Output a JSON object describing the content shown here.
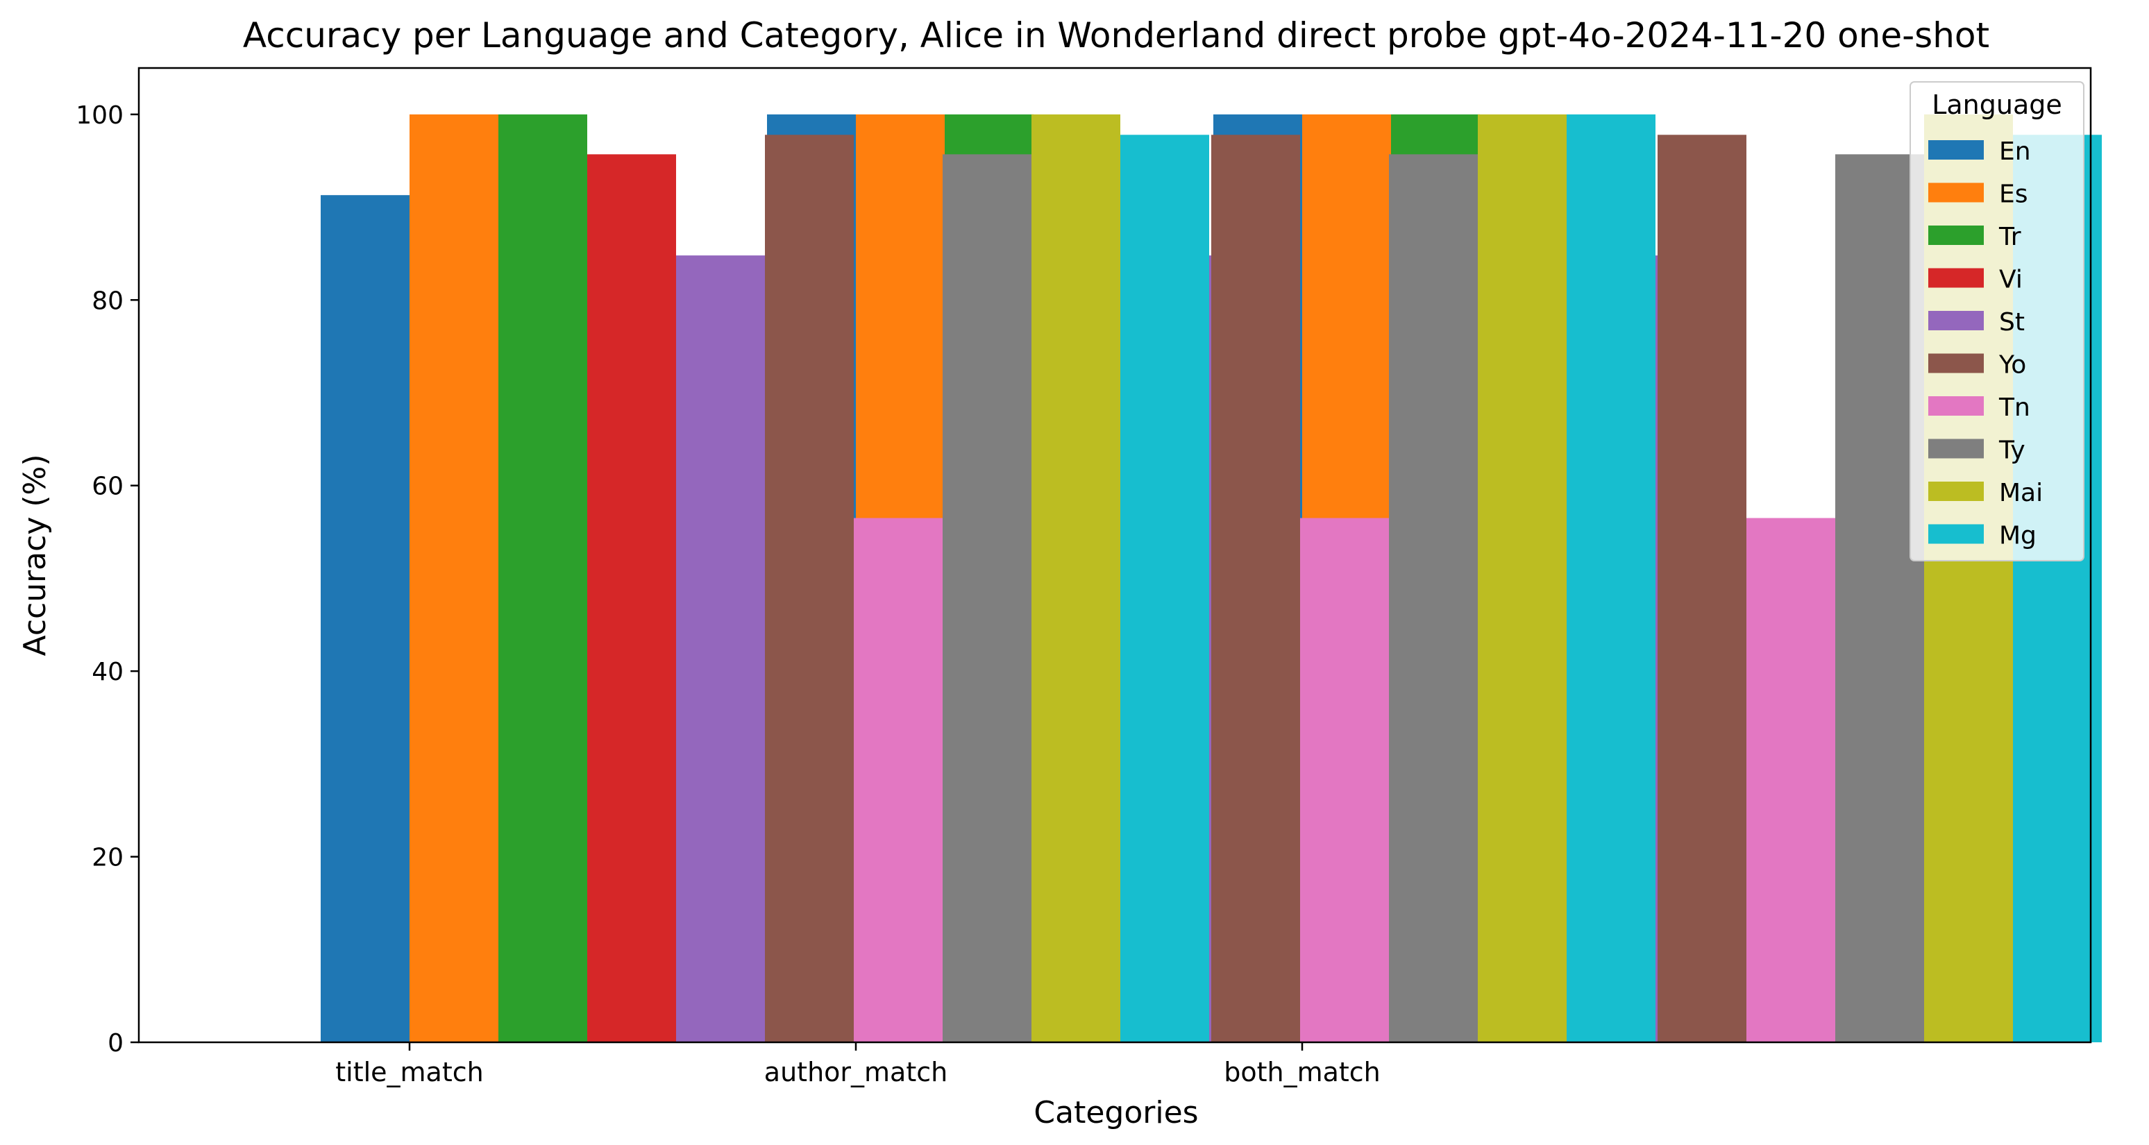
{
  "chart_data": {
    "type": "bar",
    "title": "Accuracy per Language and Category, Alice in Wonderland direct probe gpt-4o-2024-11-20 one-shot",
    "xlabel": "Categories",
    "ylabel": "Accuracy (%)",
    "ylim": [
      0,
      105
    ],
    "yticks": [
      0,
      20,
      40,
      60,
      80,
      100
    ],
    "categories": [
      "title_match",
      "author_match",
      "both_match"
    ],
    "grid": false,
    "legend": {
      "title": "Language",
      "position": "top-right"
    },
    "series": [
      {
        "name": "En",
        "color": "#1f77b4",
        "values": [
          91.3,
          100.0,
          100.0
        ]
      },
      {
        "name": "Es",
        "color": "#ff7f0e",
        "values": [
          100.0,
          100.0,
          100.0
        ]
      },
      {
        "name": "Tr",
        "color": "#2ca02c",
        "values": [
          100.0,
          100.0,
          100.0
        ]
      },
      {
        "name": "Vi",
        "color": "#d62728",
        "values": [
          95.7,
          95.7,
          95.7
        ]
      },
      {
        "name": "St",
        "color": "#9467bd",
        "values": [
          84.8,
          84.8,
          84.8
        ]
      },
      {
        "name": "Yo",
        "color": "#8c564b",
        "values": [
          97.8,
          97.8,
          97.8
        ]
      },
      {
        "name": "Tn",
        "color": "#e377c2",
        "values": [
          56.5,
          56.5,
          56.5
        ]
      },
      {
        "name": "Ty",
        "color": "#7f7f7f",
        "values": [
          95.7,
          95.7,
          95.7
        ]
      },
      {
        "name": "Mai",
        "color": "#bcbd22",
        "values": [
          100.0,
          100.0,
          100.0
        ]
      },
      {
        "name": "Mg",
        "color": "#17becf",
        "values": [
          97.8,
          100.0,
          97.8
        ]
      }
    ]
  }
}
